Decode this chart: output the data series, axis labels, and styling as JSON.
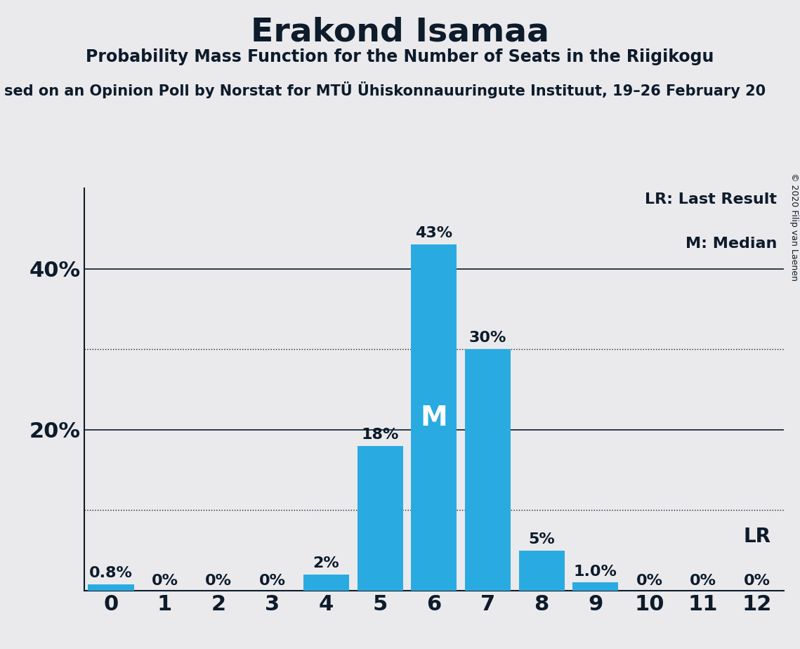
{
  "title": "Erakond Isamaa",
  "subtitle": "Probability Mass Function for the Number of Seats in the Riigikogu",
  "source_line": "sed on an Opinion Poll by Norstat for MTÜ Ühiskonnauuringute Instituut, 19–26 February 20",
  "copyright": "© 2020 Filip van Laenen",
  "seats": [
    0,
    1,
    2,
    3,
    4,
    5,
    6,
    7,
    8,
    9,
    10,
    11,
    12
  ],
  "probabilities": [
    0.008,
    0.0,
    0.0,
    0.0,
    0.02,
    0.18,
    0.43,
    0.3,
    0.05,
    0.01,
    0.0,
    0.0,
    0.0
  ],
  "labels": [
    "0.8%",
    "0%",
    "0%",
    "0%",
    "2%",
    "18%",
    "43%",
    "30%",
    "5%",
    "1.0%",
    "0%",
    "0%",
    "0%"
  ],
  "bar_color": "#29ABE2",
  "median": 6,
  "last_result": 12,
  "background_color": "#EAEAED",
  "axis_color": "#0D1B2A",
  "ylim": [
    0,
    0.5
  ],
  "xlim": [
    -0.5,
    12.5
  ],
  "title_fontsize": 34,
  "subtitle_fontsize": 17,
  "source_fontsize": 15,
  "tick_fontsize": 22,
  "label_fontsize": 16,
  "median_fontsize": 28,
  "lr_fontsize": 20,
  "legend_fontsize": 16
}
